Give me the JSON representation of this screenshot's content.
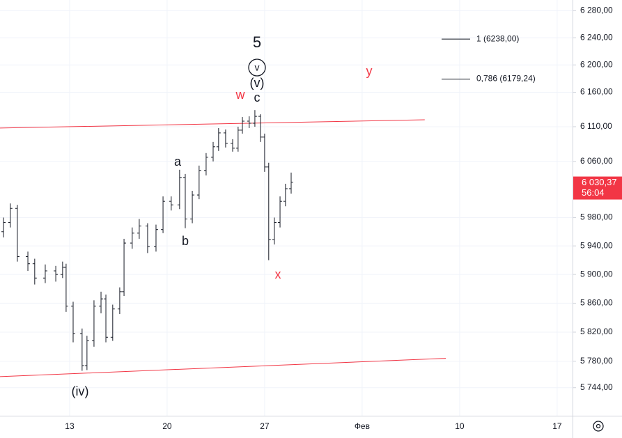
{
  "chart_data": {
    "type": "ohlc",
    "log_scale": true,
    "grid": true,
    "color": "#131722",
    "xlim": [
      -3.57,
      25.79
    ],
    "xticks": [
      {
        "value": 0,
        "label": "13"
      },
      {
        "value": 5,
        "label": "20"
      },
      {
        "value": 10,
        "label": "27"
      },
      {
        "value": 15,
        "label": "Фев"
      },
      {
        "value": 20,
        "label": "10"
      },
      {
        "value": 25,
        "label": "17"
      }
    ],
    "ylim": [
      5706,
      6296
    ],
    "yticks": [
      {
        "value": 5744,
        "label": "5 744,00"
      },
      {
        "value": 5780,
        "label": "5 780,00"
      },
      {
        "value": 5820,
        "label": "5 820,00"
      },
      {
        "value": 5860,
        "label": "5 860,00"
      },
      {
        "value": 5900,
        "label": "5 900,00"
      },
      {
        "value": 5940,
        "label": "5 940,00"
      },
      {
        "value": 5980,
        "label": "5 980,00"
      },
      {
        "value": 6060,
        "label": "6 060,00"
      },
      {
        "value": 6110,
        "label": "6 110,00"
      },
      {
        "value": 6160,
        "label": "6 160,00"
      },
      {
        "value": 6200,
        "label": "6 200,00"
      },
      {
        "value": 6240,
        "label": "6 240,00"
      },
      {
        "value": 6280,
        "label": "6 280,00"
      }
    ],
    "x": [
      -3.39,
      -3.04,
      -2.68,
      -2.14,
      -1.79,
      -1.25,
      -0.71,
      -0.36,
      -0.18,
      0.18,
      0.64,
      0.89,
      1.25,
      1.61,
      1.86,
      2.21,
      2.57,
      2.79,
      3.21,
      3.57,
      4.0,
      4.43,
      4.79,
      5.21,
      5.64,
      5.93,
      6.29,
      6.64,
      7.0,
      7.36,
      7.64,
      8.0,
      8.36,
      8.64,
      8.86,
      9.21,
      9.5,
      9.79,
      10.0,
      10.21,
      10.5,
      10.79,
      11.07,
      11.36
    ],
    "open": [
      5960,
      5973,
      5993,
      5925,
      5915,
      5895,
      5905,
      5900,
      5910,
      5856,
      5818,
      5774,
      5808,
      5856,
      5866,
      5813,
      5852,
      5876,
      5944,
      5958,
      5968,
      5939,
      5963,
      6003,
      5998,
      6037,
      5978,
      6012,
      6047,
      6066,
      6081,
      6101,
      6086,
      6079,
      6105,
      6118,
      6115,
      6125,
      6095,
      6052,
      5949,
      5973,
      6003,
      6021
    ],
    "high": [
      5980,
      6000,
      5998,
      5932,
      5922,
      5914,
      5912,
      5918,
      5915,
      5862,
      5825,
      5815,
      5864,
      5876,
      5872,
      5858,
      5882,
      5950,
      5966,
      5978,
      5972,
      5970,
      6010,
      6010,
      6048,
      6042,
      6018,
      6054,
      6072,
      6088,
      6108,
      6106,
      6092,
      6110,
      6124,
      6125,
      6134,
      6128,
      6100,
      6058,
      5980,
      6010,
      6028,
      6044
    ],
    "low": [
      5952,
      5966,
      5918,
      5905,
      5886,
      5888,
      5890,
      5895,
      5848,
      5806,
      5767,
      5768,
      5800,
      5846,
      5806,
      5808,
      5845,
      5870,
      5936,
      5950,
      5930,
      5932,
      5958,
      5990,
      5992,
      5965,
      5972,
      6006,
      6040,
      6060,
      6075,
      6080,
      6074,
      6074,
      6100,
      6108,
      6110,
      6088,
      6045,
      5920,
      5942,
      5966,
      5996,
      6014
    ],
    "close": [
      5973,
      5993,
      5925,
      5915,
      5895,
      5905,
      5900,
      5910,
      5856,
      5818,
      5774,
      5808,
      5856,
      5866,
      5813,
      5852,
      5876,
      5944,
      5958,
      5968,
      5939,
      5963,
      6003,
      5998,
      6037,
      5978,
      6012,
      6047,
      6066,
      6081,
      6101,
      6086,
      6079,
      6105,
      6118,
      6115,
      6125,
      6095,
      6052,
      5949,
      5973,
      6003,
      6021,
      6030.37
    ],
    "last_price": {
      "value": 6030.37,
      "label": "6 030,37",
      "countdown": "56:04",
      "color": "#f23645"
    },
    "trendlines": [
      {
        "color": "#f23645",
        "x": [
          -3.57,
          18.21
        ],
        "y": [
          6108,
          6120
        ]
      },
      {
        "color": "#f23645",
        "x": [
          -3.57,
          19.29
        ],
        "y": [
          5759,
          5784
        ]
      }
    ],
    "fib_levels": [
      {
        "value": 6238,
        "label": "1 (6238,00)"
      },
      {
        "value": 6179.24,
        "label": "0,786 (6179,24)"
      }
    ],
    "annotations": [
      {
        "text": "5",
        "color": "#131722"
      },
      {
        "text": "v",
        "color": "#131722"
      },
      {
        "text": "(v)",
        "color": "#131722"
      },
      {
        "text": "c",
        "color": "#131722"
      },
      {
        "text": "w",
        "color": "#f23645"
      },
      {
        "text": "y",
        "color": "#f23645"
      },
      {
        "text": "a",
        "color": "#131722"
      },
      {
        "text": "b",
        "color": "#131722"
      },
      {
        "text": "x",
        "color": "#f23645"
      },
      {
        "text": "(iv)",
        "color": "#131722"
      }
    ]
  }
}
